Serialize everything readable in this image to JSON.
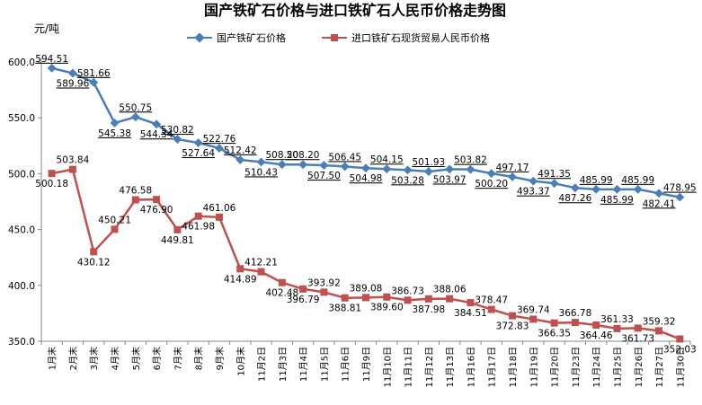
{
  "chart_data": {
    "type": "line",
    "title": "国产铁矿石价格与进口铁矿石人民币价格走势图",
    "unit_label": "元/吨",
    "ylim": [
      350,
      600
    ],
    "yticks": [
      "600.0",
      "550.0",
      "500.0",
      "450.0",
      "400.0",
      "350.0"
    ],
    "legend_position": "top-center",
    "categories": [
      "1月末",
      "2月末",
      "3月末",
      "4月末",
      "5月末",
      "6月末",
      "7月末",
      "8月末",
      "9月末",
      "10月末",
      "11月2日",
      "11月3日",
      "11月4日",
      "11月5日",
      "11月6日",
      "11月9日",
      "11月10日",
      "11月11日",
      "11月12日",
      "11月13日",
      "11月16日",
      "11月17日",
      "11月18日",
      "11月19日",
      "11月20日",
      "11月23日",
      "11月24日",
      "11月25日",
      "11月26日",
      "11月27日",
      "11月30日"
    ],
    "series": [
      {
        "name": "国产铁矿石价格",
        "color": "#4A7EBB",
        "marker": "diamond",
        "values": [
          594.51,
          589.96,
          581.66,
          545.38,
          550.75,
          544.34,
          530.82,
          527.64,
          522.76,
          512.42,
          510.43,
          508.2,
          508.2,
          507.5,
          506.45,
          504.98,
          504.15,
          503.28,
          501.93,
          503.97,
          503.82,
          500.2,
          497.17,
          493.37,
          491.35,
          487.26,
          485.99,
          485.99,
          485.99,
          482.41,
          478.95
        ],
        "labels": [
          "594.51",
          "589.96",
          "581.66",
          "545.38",
          "550.75",
          "544.34",
          "530.82",
          "527.64",
          "522.76",
          "512.42",
          "510.43",
          "508.20",
          "508.20",
          "507.50",
          "506.45",
          "504.98",
          "504.15",
          "503.28",
          "501.93",
          "503.97",
          "503.82",
          "500.20",
          "497.17",
          "493.37",
          "491.35",
          "487.26",
          "485.99",
          "485.99",
          "485.99",
          "482.41",
          "478.95"
        ]
      },
      {
        "name": "进口铁矿石现货贸易人民币价格",
        "color": "#C0504D",
        "marker": "square",
        "values": [
          500.18,
          503.84,
          430.12,
          450.21,
          476.58,
          476.9,
          449.81,
          461.98,
          461.06,
          414.89,
          412.21,
          402.48,
          396.79,
          393.92,
          388.81,
          389.08,
          389.6,
          386.73,
          387.98,
          388.06,
          384.51,
          378.47,
          372.83,
          369.74,
          366.35,
          366.78,
          364.46,
          361.33,
          361.73,
          359.32,
          352.03
        ],
        "labels": [
          "500.18",
          "503.84",
          "430.12",
          "450.21",
          "476.58",
          "476.90",
          "449.81",
          "461.98",
          "461.06",
          "414.89",
          "412.21",
          "402.48",
          "396.79",
          "393.92",
          "388.81",
          "389.08",
          "389.60",
          "386.73",
          "387.98",
          "388.06",
          "384.51",
          "378.47",
          "372.83",
          "369.74",
          "366.35",
          "366.78",
          "364.46",
          "361.33",
          "361.73",
          "359.32",
          "352.03"
        ]
      }
    ]
  }
}
